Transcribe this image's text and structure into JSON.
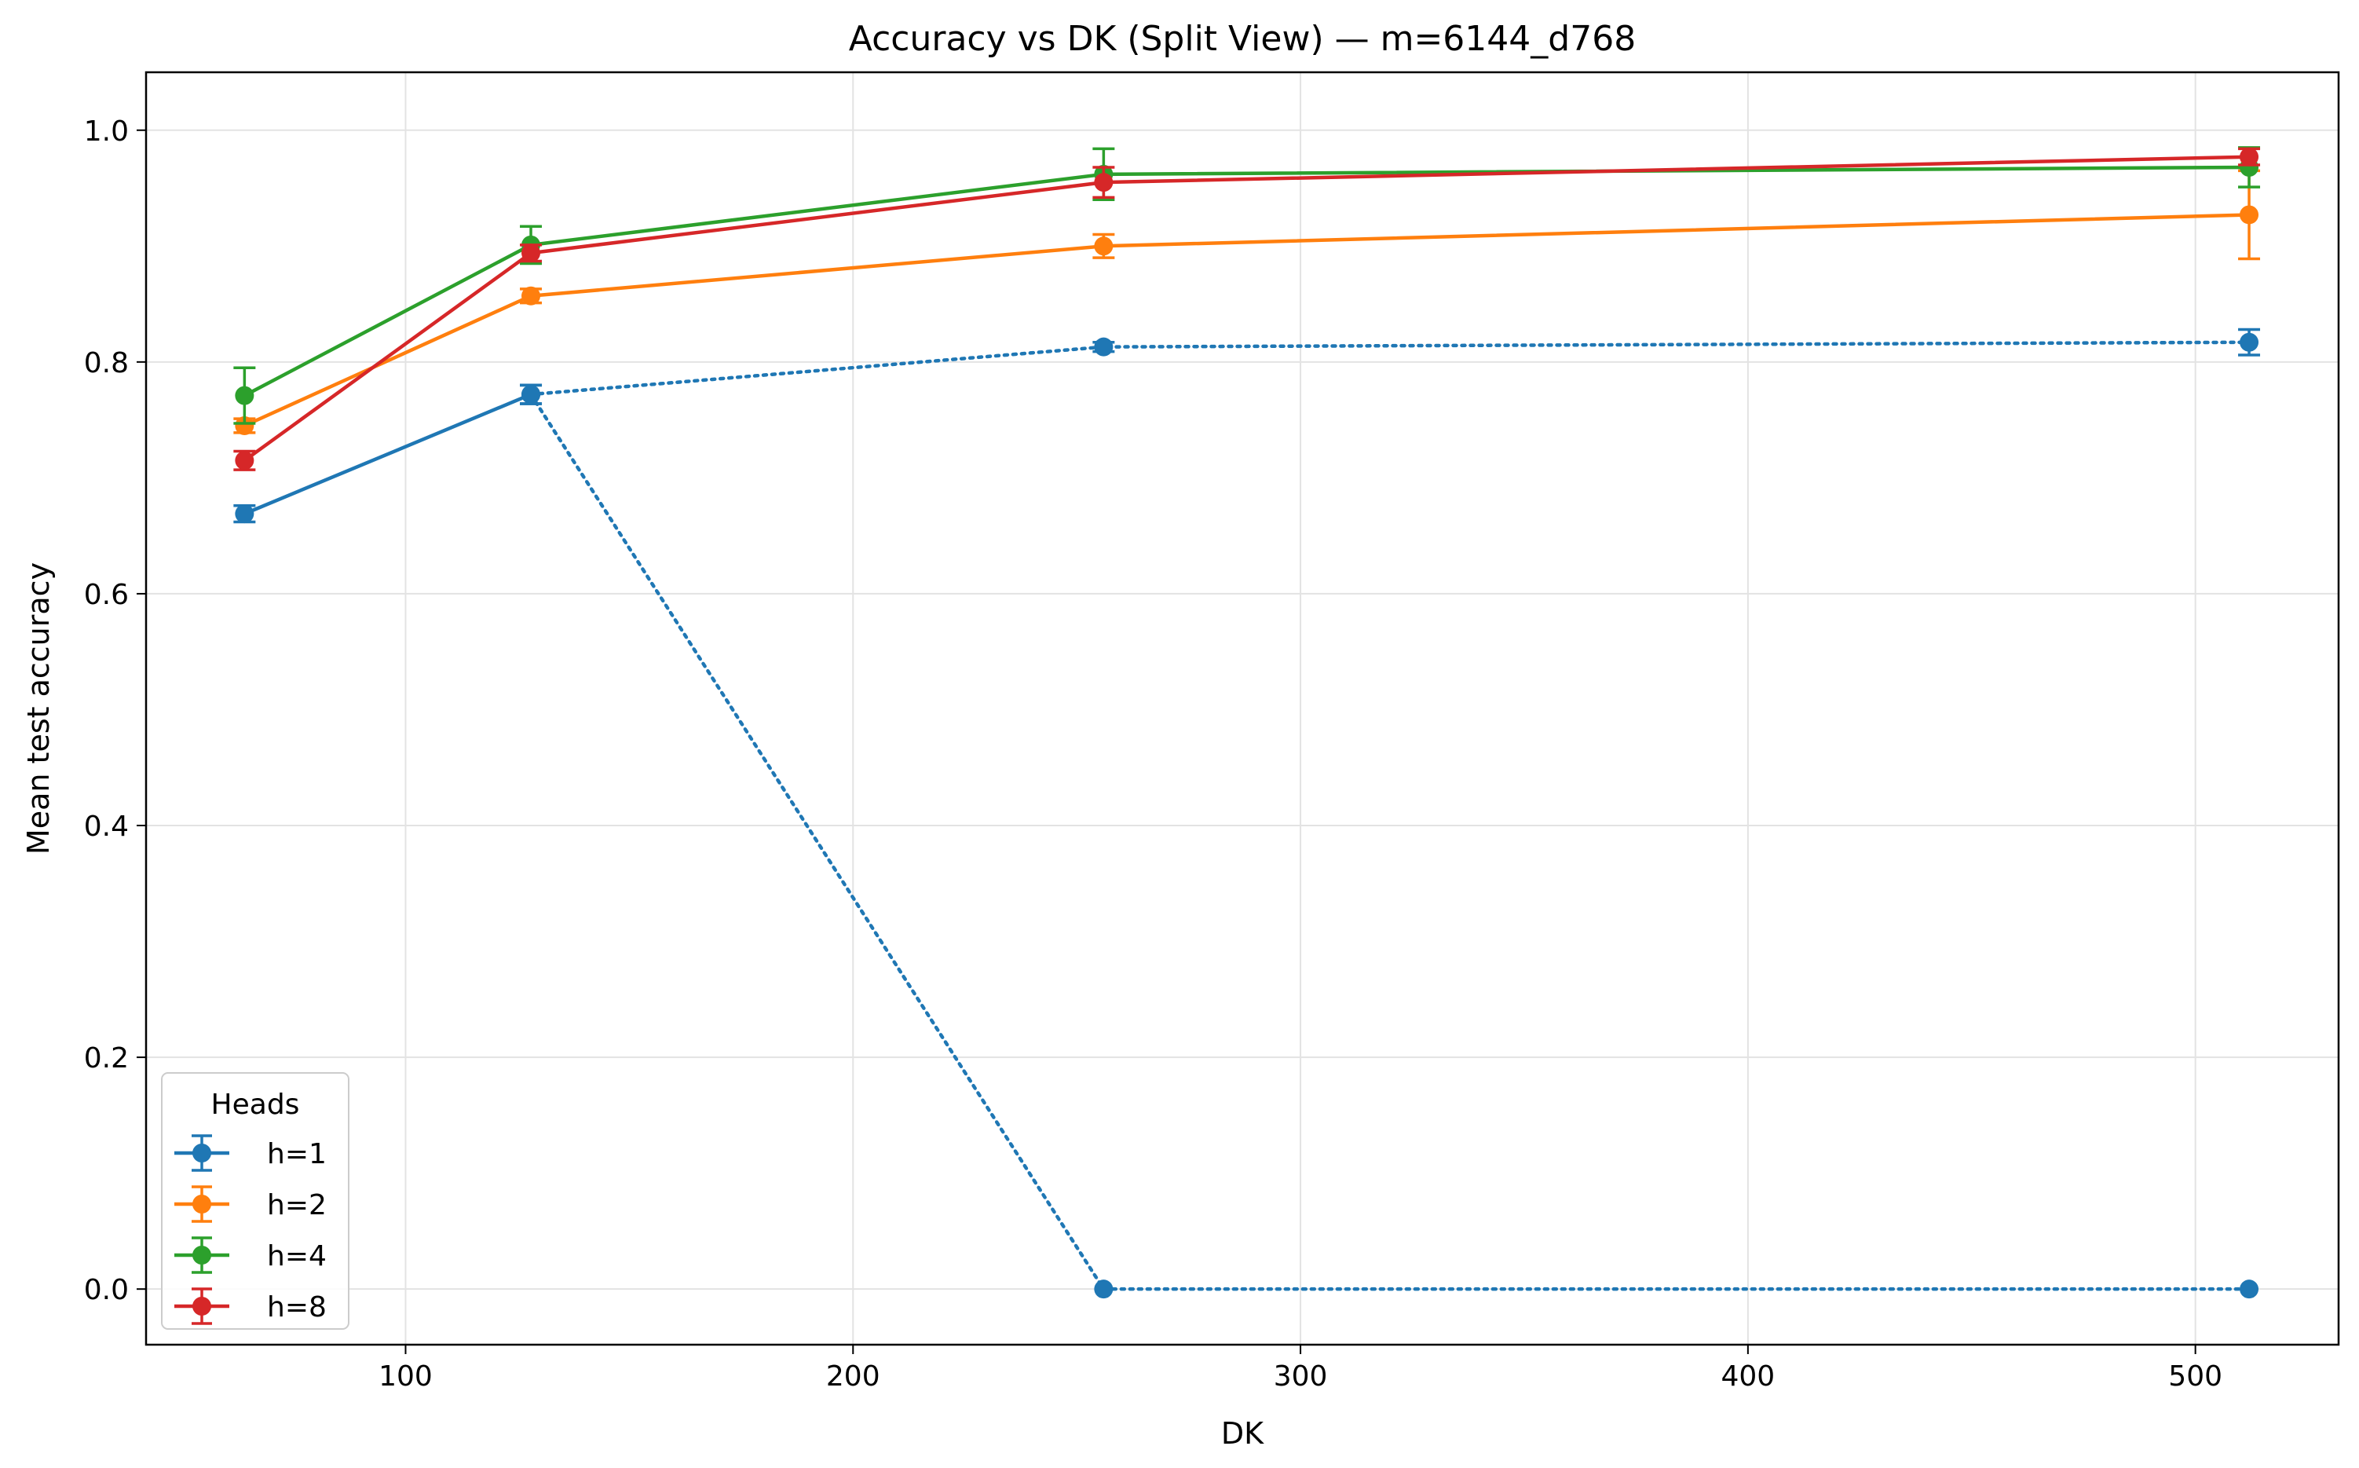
{
  "chart_data": {
    "type": "line",
    "title": "Accuracy vs DK (Split View) — m=6144_d768",
    "xlabel": "DK",
    "ylabel": "Mean test accuracy",
    "xlim": [
      42,
      532
    ],
    "ylim": [
      -0.048,
      1.05
    ],
    "xticks": [
      100,
      200,
      300,
      400,
      500
    ],
    "xtick_labels": [
      "100",
      "200",
      "300",
      "400",
      "500"
    ],
    "yticks": [
      0.0,
      0.2,
      0.4,
      0.6,
      0.8,
      1.0
    ],
    "ytick_labels": [
      "0.0",
      "0.2",
      "0.4",
      "0.6",
      "0.8",
      "1.0"
    ],
    "grid": true,
    "legend": {
      "title": "Heads",
      "position": "lower-left"
    },
    "x": [
      64,
      128,
      256,
      512
    ],
    "series": [
      {
        "name": "h=1",
        "color": "#1f77b4",
        "values": [
          0.669,
          0.772,
          null,
          null
        ],
        "errors": [
          0.007,
          0.008,
          null,
          null
        ]
      },
      {
        "name": "h=2",
        "color": "#ff7f0e",
        "values": [
          0.745,
          0.857,
          0.9,
          0.927
        ],
        "errors": [
          0.006,
          0.006,
          0.01,
          0.038
        ]
      },
      {
        "name": "h=4",
        "color": "#2ca02c",
        "values": [
          0.771,
          0.901,
          0.962,
          0.968
        ],
        "errors": [
          0.024,
          0.016,
          0.022,
          0.017
        ]
      },
      {
        "name": "h=8",
        "color": "#d62728",
        "values": [
          0.715,
          0.894,
          0.955,
          0.977
        ],
        "errors": [
          0.008,
          0.007,
          0.013,
          0.007
        ]
      }
    ],
    "split_series": [
      {
        "color": "#1f77b4",
        "style": "dotted",
        "x": [
          128,
          256,
          512
        ],
        "values": [
          0.772,
          0.813,
          0.817
        ],
        "errors": [
          0.008,
          0.004,
          0.011
        ]
      },
      {
        "color": "#1f77b4",
        "style": "dotted",
        "x": [
          128,
          256,
          512
        ],
        "values": [
          0.772,
          0.0,
          0.0
        ],
        "errors": [
          0.008,
          0.0,
          0.0
        ]
      }
    ]
  }
}
